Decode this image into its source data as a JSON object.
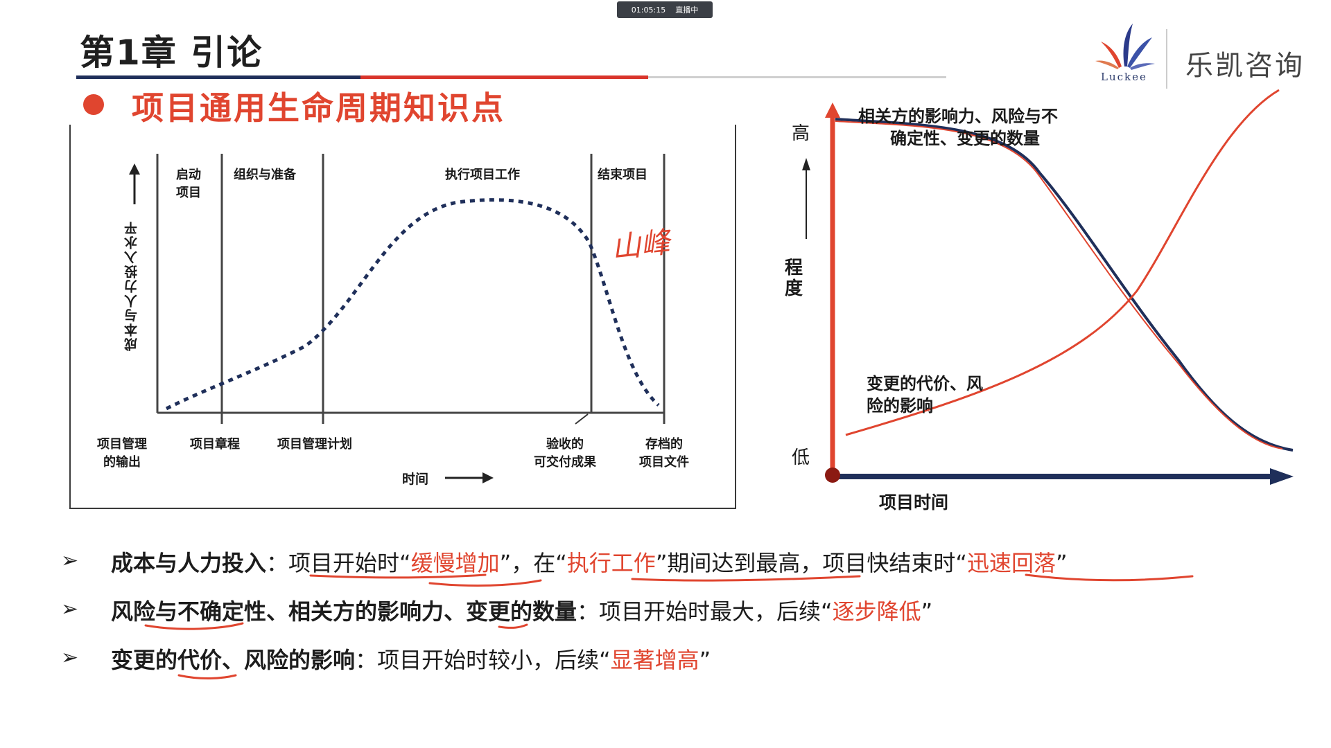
{
  "live": {
    "time": "01:05:15",
    "status": "直播中"
  },
  "chapter_title": "第1章 引论",
  "section_heading": "项目通用生命周期知识点",
  "logo": {
    "name": "乐凯咨询",
    "word": "Luckee"
  },
  "left_chart": {
    "phases": [
      "启动",
      "项目",
      "组织与准备",
      "执行项目工作",
      "结束项目"
    ],
    "ylabel": "成本与人力投入水平",
    "bottom_labels": [
      [
        "项目管理",
        "的输出"
      ],
      [
        "项目章程"
      ],
      [
        "项目管理计划"
      ],
      [
        "验收的",
        "可交付成果"
      ],
      [
        "存档的",
        "项目文件"
      ]
    ],
    "xlabel": "时间",
    "hand_note": "山峰"
  },
  "right_chart": {
    "y_high": "高",
    "y_low": "低",
    "y_label": [
      "程",
      "度"
    ],
    "curve1_label": [
      "相关方的影响力、风险与不",
      "确定性、变更的数量"
    ],
    "curve2_label": [
      "变更的代价、风",
      "险的影响"
    ],
    "x_label": "项目时间"
  },
  "points": [
    {
      "t1": "成本与人力投入",
      "t2": "：项目开始时“",
      "t3": "缓慢增加",
      "t4": "”，在“",
      "t5": "执行工作",
      "t6": "”期间达到最高，项目快结束时“",
      "t7": "迅速回落",
      "t8": "”"
    },
    {
      "t1": "风险与不确定性、相关方的影响力、变更的",
      "t2": "数量",
      "t3": "：项目开始时最大，后续“",
      "t4": "逐步降低",
      "t5": "”"
    },
    {
      "t1": "变更的",
      "t2": "代价",
      "t3": "、风险的",
      "t4": "影响",
      "t5": "：项目开始时较小，后续“",
      "t6": "显著增高",
      "t7": "”"
    }
  ],
  "colors": {
    "accent": "#e0452f",
    "navy": "#1f2f5a"
  }
}
